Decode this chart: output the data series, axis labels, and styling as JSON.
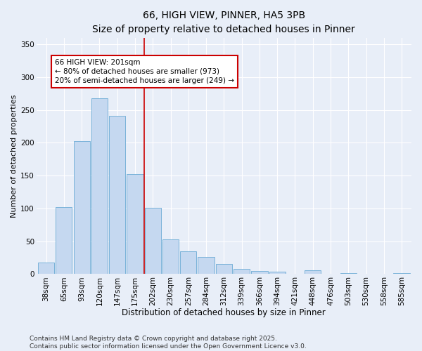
{
  "title1": "66, HIGH VIEW, PINNER, HA5 3PB",
  "title2": "Size of property relative to detached houses in Pinner",
  "xlabel": "Distribution of detached houses by size in Pinner",
  "ylabel": "Number of detached properties",
  "categories": [
    "38sqm",
    "65sqm",
    "93sqm",
    "120sqm",
    "147sqm",
    "175sqm",
    "202sqm",
    "230sqm",
    "257sqm",
    "284sqm",
    "312sqm",
    "339sqm",
    "366sqm",
    "394sqm",
    "421sqm",
    "448sqm",
    "476sqm",
    "503sqm",
    "530sqm",
    "558sqm",
    "585sqm"
  ],
  "values": [
    18,
    102,
    203,
    268,
    241,
    152,
    101,
    53,
    35,
    26,
    15,
    8,
    5,
    4,
    0,
    6,
    0,
    2,
    0,
    0,
    2
  ],
  "bar_color": "#c5d8f0",
  "bar_edge_color": "#6aaad4",
  "vline_color": "#cc0000",
  "annotation_text": "66 HIGH VIEW: 201sqm\n← 80% of detached houses are smaller (973)\n20% of semi-detached houses are larger (249) →",
  "annotation_box_color": "#ffffff",
  "annotation_box_edge": "#cc0000",
  "ylim": [
    0,
    360
  ],
  "yticks": [
    0,
    50,
    100,
    150,
    200,
    250,
    300,
    350
  ],
  "bg_color": "#e8eef8",
  "footer": "Contains HM Land Registry data © Crown copyright and database right 2025.\nContains public sector information licensed under the Open Government Licence v3.0.",
  "title1_fontsize": 10,
  "title2_fontsize": 9,
  "xlabel_fontsize": 8.5,
  "ylabel_fontsize": 8,
  "tick_fontsize": 7.5,
  "footer_fontsize": 6.5,
  "ann_fontsize": 7.5
}
